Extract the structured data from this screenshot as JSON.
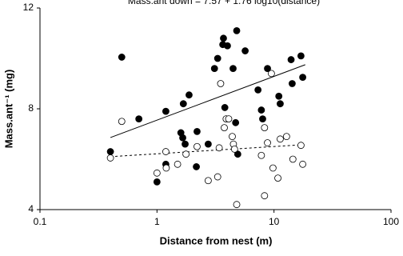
{
  "chart_data": {
    "type": "scatter",
    "annotation": "Mass.ant down = 7.57 + 1.76 log10(distance)",
    "x_label": "Distance from nest (m)",
    "y_label": "Mass.ant⁻¹ (mg)",
    "xlog": true,
    "xlim": [
      0.1,
      100
    ],
    "xticks": [
      0.1,
      1,
      10,
      100
    ],
    "ylim": [
      4,
      12
    ],
    "yticks": [
      4,
      8,
      12
    ],
    "series": [
      {
        "color": "#000000",
        "filled": true,
        "x": [
          0.4,
          0.5,
          0.7,
          1.0,
          1.19,
          1.19,
          1.6,
          1.66,
          1.68,
          1.88,
          1.74,
          2.17,
          2.2,
          2.74,
          3.1,
          3.3,
          3.65,
          3.7,
          3.8,
          4.0,
          4.47,
          4.7,
          4.8,
          4.9,
          5.67,
          7.3,
          7.8,
          8.0,
          8.8,
          11,
          11.3,
          14,
          14.3,
          17,
          17.6
        ],
        "values": [
          6.3,
          10.05,
          7.6,
          5.1,
          5.8,
          7.9,
          7.05,
          6.85,
          8.2,
          8.55,
          6.6,
          5.7,
          7.1,
          6.6,
          9.6,
          10.0,
          10.55,
          10.8,
          8.05,
          10.5,
          9.6,
          7.45,
          11.1,
          6.2,
          10.3,
          8.75,
          7.95,
          7.6,
          9.6,
          8.5,
          8.2,
          9.95,
          9.0,
          10.1,
          9.25
        ]
      },
      {
        "color": "#000000",
        "filled": false,
        "x": [
          0.4,
          0.5,
          1.0,
          1.19,
          1.2,
          1.5,
          1.77,
          2.2,
          2.74,
          3.3,
          3.4,
          3.5,
          3.76,
          3.9,
          4.1,
          4.4,
          4.5,
          4.6,
          4.8,
          7.8,
          8.3,
          8.3,
          8.8,
          9.5,
          9.8,
          10.8,
          11.3,
          12.8,
          14.5,
          17,
          17.6
        ],
        "values": [
          6.05,
          7.5,
          5.45,
          6.3,
          5.65,
          5.8,
          6.2,
          6.5,
          5.15,
          5.3,
          6.45,
          9.0,
          7.25,
          7.6,
          7.6,
          6.9,
          6.6,
          6.4,
          4.2,
          6.15,
          7.25,
          4.55,
          6.65,
          9.4,
          5.65,
          5.25,
          6.8,
          6.9,
          6.0,
          6.55,
          5.8
        ]
      }
    ],
    "trendlines": [
      {
        "dash": false,
        "x": [
          0.4,
          18.5
        ],
        "values": [
          6.86,
          9.75
        ]
      },
      {
        "dash": true,
        "x": [
          0.4,
          18.5
        ],
        "values": [
          6.1,
          6.58
        ]
      }
    ]
  }
}
